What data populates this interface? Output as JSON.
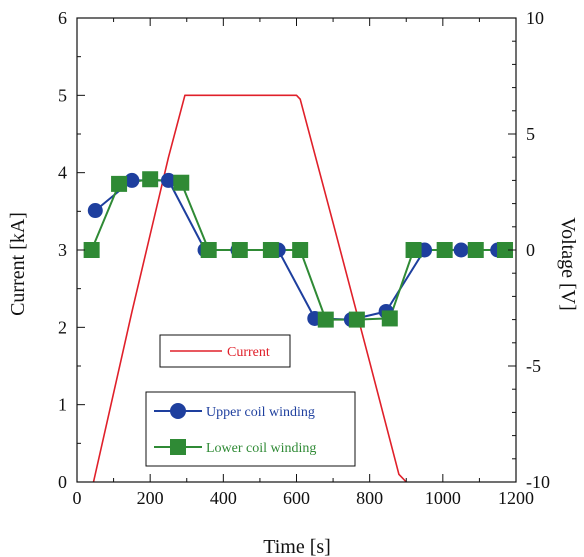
{
  "chart_data": {
    "type": "line",
    "xlabel": "Time [s]",
    "ylabel": "Current [kA]",
    "y2label": "Voltage [V]",
    "xlim": [
      0,
      1200
    ],
    "ylim": [
      0,
      6
    ],
    "y2lim": [
      -10,
      10
    ],
    "x_ticks": [
      "0",
      "200",
      "400",
      "600",
      "800",
      "1000",
      "1200"
    ],
    "y_ticks": [
      "0",
      "1",
      "2",
      "3",
      "4",
      "5",
      "6"
    ],
    "y2_ticks": [
      "-10",
      "-5",
      "0",
      "5",
      "10"
    ],
    "grid": false,
    "series": [
      {
        "name": "Current",
        "axis": "left",
        "color": "#e0202a",
        "marker": "none",
        "x": [
          45,
          100,
          150,
          200,
          250,
          295,
          300,
          400,
          500,
          600,
          610,
          700,
          800,
          880,
          900
        ],
        "y": [
          0.0,
          1.15,
          2.2,
          3.2,
          4.2,
          5.0,
          5.0,
          5.0,
          5.0,
          5.0,
          4.95,
          3.35,
          1.55,
          0.1,
          0.0
        ]
      },
      {
        "name": "Upper coil winding",
        "axis": "right",
        "color": "#1e3f9e",
        "marker": "circle",
        "x": [
          50,
          150,
          250,
          350,
          440,
          550,
          650,
          750,
          845,
          950,
          1050,
          1150
        ],
        "y": [
          1.7,
          3.0,
          3.0,
          0.0,
          0.0,
          0.0,
          -2.95,
          -3.0,
          -2.65,
          0.0,
          0.0,
          0.0
        ]
      },
      {
        "name": "Lower coil winding",
        "axis": "right",
        "color": "#2f8a35",
        "marker": "square",
        "x": [
          40,
          115,
          200,
          285,
          360,
          445,
          530,
          610,
          680,
          765,
          855,
          920,
          1005,
          1090,
          1170
        ],
        "y": [
          0.0,
          2.85,
          3.05,
          2.9,
          0.0,
          0.0,
          0.0,
          0.0,
          -3.0,
          -3.0,
          -2.95,
          0.0,
          0.0,
          0.0,
          0.0
        ]
      }
    ]
  },
  "legend": {
    "current": "Current",
    "upper": "Upper coil winding",
    "lower": "Lower coil winding"
  }
}
